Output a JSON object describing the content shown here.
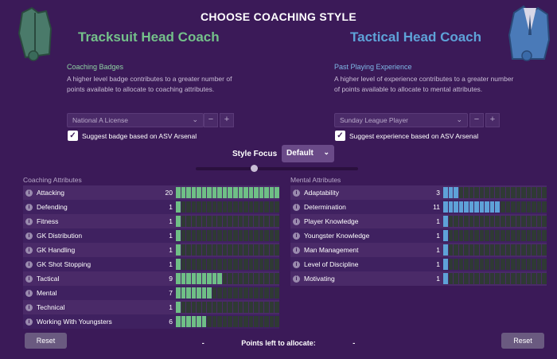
{
  "title": "CHOOSE COACHING STYLE",
  "left": {
    "heading": "Tracksuit Head Coach",
    "sub": "Coaching Badges",
    "desc": "A higher level badge contributes to a greater number of points available to allocate to coaching attributes.",
    "dropdown": "National A License",
    "checkbox": "Suggest badge based on ASV Arsenal",
    "section": "Coaching Attributes"
  },
  "right": {
    "heading": "Tactical Head Coach",
    "sub": "Past Playing Experience",
    "desc": "A higher level of experience contributes to a greater number of points available to allocate to mental attributes.",
    "dropdown": "Sunday League Player",
    "checkbox": "Suggest experience based on ASV Arsenal",
    "section": "Mental Attributes"
  },
  "focus": {
    "label": "Style Focus",
    "value": "Default"
  },
  "coaching": [
    {
      "name": "Attacking",
      "value": 20
    },
    {
      "name": "Defending",
      "value": 1
    },
    {
      "name": "Fitness",
      "value": 1
    },
    {
      "name": "GK Distribution",
      "value": 1
    },
    {
      "name": "GK Handling",
      "value": 1
    },
    {
      "name": "GK Shot Stopping",
      "value": 1
    },
    {
      "name": "Tactical",
      "value": 9
    },
    {
      "name": "Mental",
      "value": 7
    },
    {
      "name": "Technical",
      "value": 1
    },
    {
      "name": "Working With Youngsters",
      "value": 6
    }
  ],
  "mental": [
    {
      "name": "Adaptability",
      "value": 3
    },
    {
      "name": "Determination",
      "value": 11
    },
    {
      "name": "Player Knowledge",
      "value": 1
    },
    {
      "name": "Youngster Knowledge",
      "value": 1
    },
    {
      "name": "Man Management",
      "value": 1
    },
    {
      "name": "Level of Discipline",
      "value": 1
    },
    {
      "name": "Motivating",
      "value": 1
    }
  ],
  "max_points": 20,
  "colors": {
    "coaching_bar": "#6fbf86",
    "mental_bar": "#5ea2d8",
    "empty_bar": "#2f3a34"
  },
  "reset_label": "Reset",
  "points_label": "Points left to allocate:",
  "points_dash": "-",
  "minus": "−",
  "plus": "+",
  "icons": {
    "check": "✓",
    "chevron": "⌄",
    "info": "i"
  }
}
